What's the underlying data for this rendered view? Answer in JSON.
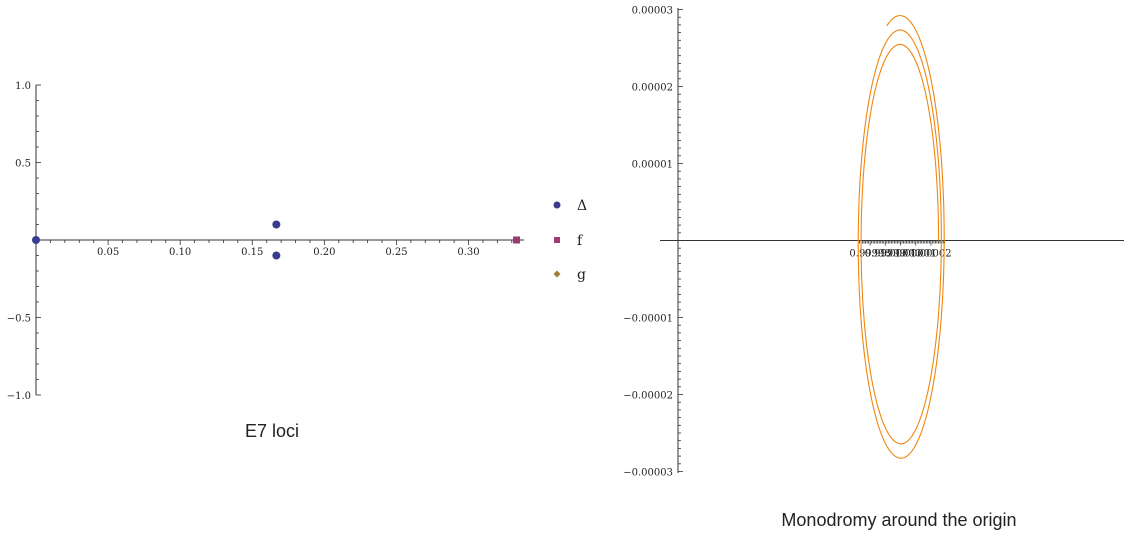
{
  "chart_data": [
    {
      "type": "scatter",
      "title": "E7 loci",
      "xlim": [
        0,
        0.335
      ],
      "ylim": [
        -1.0,
        1.0
      ],
      "x_ticks": [
        0.05,
        0.1,
        0.15,
        0.2,
        0.25,
        0.3
      ],
      "x_tick_labels": [
        "0.05",
        "0.10",
        "0.15",
        "0.20",
        "0.25",
        "0.30"
      ],
      "y_ticks": [
        1.0,
        0.5,
        -0.5,
        -1.0
      ],
      "y_tick_labels": [
        "1.0",
        "0.5",
        "−0.5",
        "−1.0"
      ],
      "legend_position": "right",
      "series": [
        {
          "name": "Δ",
          "marker": "circle",
          "color": "#3b3b8f",
          "points": [
            [
              0,
              0
            ],
            [
              0.1667,
              0.1
            ],
            [
              0.1667,
              -0.1
            ]
          ]
        },
        {
          "name": "f",
          "marker": "square",
          "color": "#9e3a6e",
          "points": [
            [
              0.3333,
              0
            ]
          ]
        },
        {
          "name": "g",
          "marker": "diamond",
          "color": "#9e7f3a",
          "points": [
            [
              0,
              0
            ]
          ]
        }
      ]
    },
    {
      "type": "line",
      "title": "Monodromy around the origin",
      "xlim": [
        0.999973,
        1.000029
      ],
      "ylim": [
        -3e-05,
        3e-05
      ],
      "x_ticks": [
        0.99998,
        0.99999,
        1.0,
        1.00001,
        1.00002
      ],
      "x_tick_labels": [
        "0.99998",
        "0.99999",
        "1.00000",
        "1.00001",
        "1.00002"
      ],
      "y_ticks": [
        3e-05,
        2e-05,
        1e-05,
        -1e-05,
        -2e-05,
        -3e-05
      ],
      "y_tick_labels": [
        "0.00003",
        "0.00002",
        "0.00001",
        "−0.00001",
        "−0.00002",
        "−0.00003"
      ],
      "color": "#f0860e",
      "spiral": {
        "center": [
          1.0,
          0.0
        ],
        "r_start": 2.5e-05,
        "r_end": 2.93e-05,
        "turns": 2.3,
        "start_angle_deg": 0
      }
    }
  ]
}
